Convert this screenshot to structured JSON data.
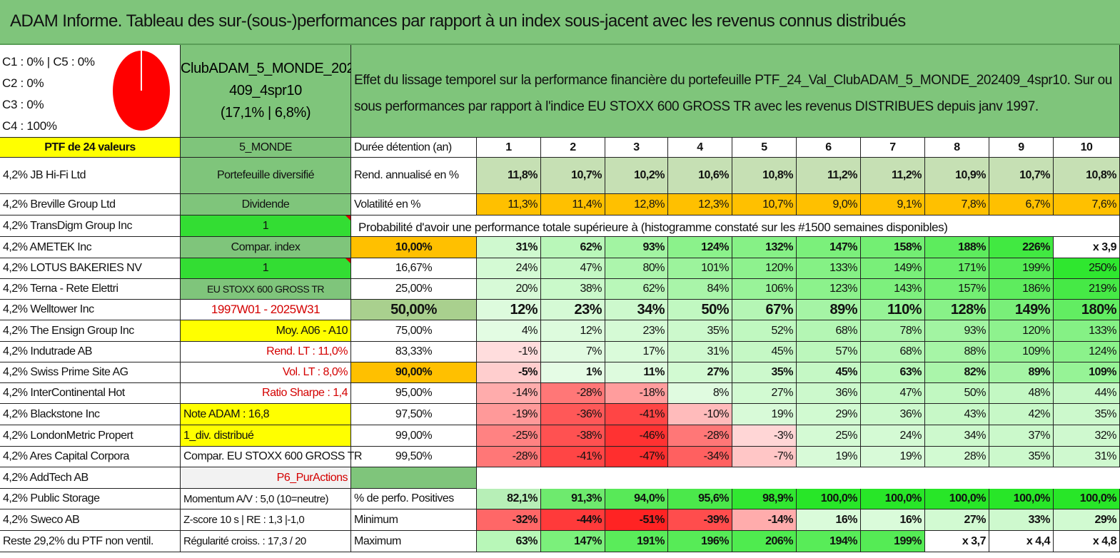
{
  "title": "ADAM Informe. Tableau des sur-(sous-)performances par rapport à un index sous-jacent avec les revenus connus distribués",
  "colors": {
    "header_green": "#7fc57b",
    "yellow": "#ffff00",
    "bright_green": "#33dd33",
    "orange": "#ffc000",
    "red_text": "#d40000"
  },
  "mix": {
    "c1c5": "C1 : 0% | C5 : 0%",
    "c2": "C2 : 0%",
    "c3": "C3 : 0%",
    "c4": "C4 : 100%",
    "pie_fraction_c4": 1.0,
    "pie_color": "#ff0000"
  },
  "portfolio": {
    "name_line1": "ClubADAM_5_MONDE_202",
    "name_line2": "409_4spr10",
    "name_line3": "(17,1% | 6,8%)",
    "effect_text": "Effet du lissage temporel sur la performance financière du portefeuille PTF_24_Val_ClubADAM_5_MONDE_202409_4spr10. Sur ou sous performances par rapport à l'indice EU STOXX 600 GROSS TR avec les revenus DISTRIBUES depuis janv 1997."
  },
  "holdings": [
    "PTF de 24 valeurs",
    "4,2% JB Hi-Fi Ltd",
    "4,2% Breville Group Ltd",
    "4,2% TransDigm Group Inc",
    "4,2% AMETEK Inc",
    "4,2% LOTUS BAKERIES NV",
    "4,2% Terna - Rete Elettri",
    "4,2% Welltower Inc",
    "4,2% The Ensign Group Inc",
    "4,2% Indutrade AB",
    "4,2% Swiss Prime Site AG",
    "4,2% InterContinental Hot",
    "4,2% Blackstone Inc",
    "4,2% LondonMetric Propert",
    "4,2% Ares Capital Corpora",
    "4,2% AddTech AB",
    "4,2% Public Storage",
    "4,2% Sweco AB",
    "Reste 29,2% du PTF non ventil."
  ],
  "info": [
    "5_MONDE",
    "Portefeuille diversifié",
    "Dividende",
    "1",
    "Compar. index",
    "1",
    "EU STOXX 600 GROSS TR",
    "1997W01 - 2025W31",
    "Moy. A06 - A10",
    "Rend. LT : 11,0%",
    "Vol. LT : 8,0%",
    "Ratio Sharpe : 1,4",
    "Note ADAM : 16,8",
    "1_div. distribué",
    "Compar. EU STOXX 600 GROSS TR",
    "P6_PurActions",
    "Momentum A/V : 5,0 (10=neutre)",
    "Z-score 10 s | RE : 1,3 |-1,0",
    "Régularité croiss. : 17,3 / 20"
  ],
  "labels": {
    "duration": "Durée détention (an)",
    "rend": "Rend. annualisé en %",
    "vol": "Volatilité en %",
    "prob": "Probabilité d'avoir une performance totale supérieure à (histogramme constaté sur les #1500 semaines disponibles)",
    "pos": "% de perfo. Positives",
    "min": "Minimum",
    "max": "Maximum"
  },
  "years": [
    "1",
    "2",
    "3",
    "4",
    "5",
    "6",
    "7",
    "8",
    "9",
    "10"
  ],
  "rend": [
    "11,8%",
    "10,7%",
    "10,2%",
    "10,6%",
    "10,8%",
    "11,2%",
    "11,2%",
    "10,9%",
    "10,7%",
    "10,8%"
  ],
  "vol": [
    "11,3%",
    "11,4%",
    "12,8%",
    "12,3%",
    "10,7%",
    "9,0%",
    "9,1%",
    "7,8%",
    "6,7%",
    "7,6%"
  ],
  "quantiles": [
    {
      "q": "10,00%",
      "vals": [
        "31%",
        "62%",
        "93%",
        "124%",
        "132%",
        "147%",
        "158%",
        "188%",
        "226%",
        "x 3,9"
      ]
    },
    {
      "q": "16,67%",
      "vals": [
        "24%",
        "47%",
        "80%",
        "101%",
        "120%",
        "133%",
        "149%",
        "171%",
        "199%",
        "250%"
      ]
    },
    {
      "q": "25,00%",
      "vals": [
        "20%",
        "38%",
        "62%",
        "84%",
        "106%",
        "123%",
        "143%",
        "157%",
        "186%",
        "219%"
      ]
    },
    {
      "q": "50,00%",
      "vals": [
        "12%",
        "23%",
        "34%",
        "50%",
        "67%",
        "89%",
        "110%",
        "128%",
        "149%",
        "180%"
      ]
    },
    {
      "q": "75,00%",
      "vals": [
        "4%",
        "12%",
        "23%",
        "35%",
        "52%",
        "68%",
        "78%",
        "93%",
        "120%",
        "133%"
      ]
    },
    {
      "q": "83,33%",
      "vals": [
        "-1%",
        "7%",
        "17%",
        "31%",
        "45%",
        "57%",
        "68%",
        "88%",
        "109%",
        "124%"
      ]
    },
    {
      "q": "90,00%",
      "vals": [
        "-5%",
        "1%",
        "11%",
        "27%",
        "35%",
        "45%",
        "63%",
        "82%",
        "89%",
        "109%"
      ]
    },
    {
      "q": "95,00%",
      "vals": [
        "-14%",
        "-28%",
        "-18%",
        "8%",
        "27%",
        "36%",
        "47%",
        "50%",
        "48%",
        "44%"
      ]
    },
    {
      "q": "97,50%",
      "vals": [
        "-19%",
        "-36%",
        "-41%",
        "-10%",
        "19%",
        "29%",
        "36%",
        "43%",
        "42%",
        "35%"
      ]
    },
    {
      "q": "99,00%",
      "vals": [
        "-25%",
        "-38%",
        "-46%",
        "-28%",
        "-3%",
        "25%",
        "24%",
        "34%",
        "37%",
        "32%"
      ]
    },
    {
      "q": "99,50%",
      "vals": [
        "-28%",
        "-41%",
        "-47%",
        "-34%",
        "-7%",
        "19%",
        "19%",
        "28%",
        "35%",
        "31%"
      ]
    }
  ],
  "pos": [
    "82,1%",
    "91,3%",
    "94,0%",
    "95,6%",
    "98,9%",
    "100,0%",
    "100,0%",
    "100,0%",
    "100,0%",
    "100,0%"
  ],
  "min": [
    "-32%",
    "-44%",
    "-51%",
    "-39%",
    "-14%",
    "16%",
    "16%",
    "27%",
    "33%",
    "29%"
  ],
  "max": [
    "63%",
    "147%",
    "191%",
    "196%",
    "206%",
    "194%",
    "199%",
    "x 3,7",
    "x 4,4",
    "x 4,8"
  ]
}
